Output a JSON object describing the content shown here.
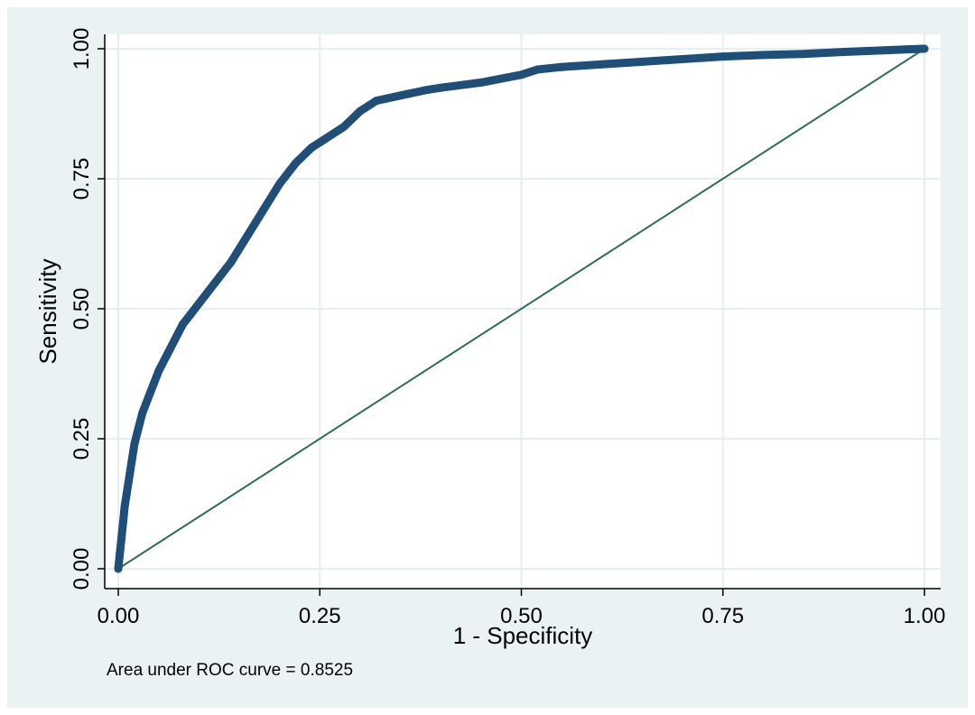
{
  "chart_data": {
    "type": "line",
    "xlabel": "1 - Specificity",
    "ylabel": "Sensitivity",
    "xlim": [
      0,
      1
    ],
    "ylim": [
      0,
      1
    ],
    "xticks": [
      "0.00",
      "0.25",
      "0.50",
      "0.75",
      "1.00"
    ],
    "yticks": [
      "0.00",
      "0.25",
      "0.50",
      "0.75",
      "1.00"
    ],
    "grid": true,
    "note": "Area under ROC curve = 0.8525",
    "colors": {
      "curve": "#1f4e79",
      "reference": "#2e6b5e",
      "grid": "#e6eef0",
      "plot_bg": "#ffffff",
      "outer_bg": "#eaf2f3"
    },
    "series": [
      {
        "x": [
          0,
          0.002,
          0.004,
          0.006,
          0.008,
          0.01,
          0.015,
          0.02,
          0.025,
          0.03,
          0.04,
          0.05,
          0.06,
          0.07,
          0.08,
          0.09,
          0.1,
          0.12,
          0.14,
          0.16,
          0.18,
          0.2,
          0.22,
          0.24,
          0.25,
          0.28,
          0.3,
          0.32,
          0.35,
          0.38,
          0.4,
          0.45,
          0.5,
          0.52,
          0.55,
          0.6,
          0.65,
          0.7,
          0.75,
          0.8,
          0.85,
          0.9,
          0.95,
          0.98,
          1.0
        ],
        "y": [
          0,
          0.03,
          0.06,
          0.09,
          0.12,
          0.14,
          0.19,
          0.24,
          0.27,
          0.3,
          0.34,
          0.38,
          0.41,
          0.44,
          0.47,
          0.49,
          0.51,
          0.55,
          0.59,
          0.64,
          0.69,
          0.74,
          0.78,
          0.81,
          0.82,
          0.85,
          0.88,
          0.9,
          0.91,
          0.92,
          0.925,
          0.935,
          0.95,
          0.96,
          0.965,
          0.97,
          0.975,
          0.98,
          0.985,
          0.988,
          0.99,
          0.994,
          0.997,
          0.999,
          1.0
        ]
      },
      {
        "x": [
          0,
          1
        ],
        "y": [
          0,
          1
        ]
      }
    ]
  }
}
